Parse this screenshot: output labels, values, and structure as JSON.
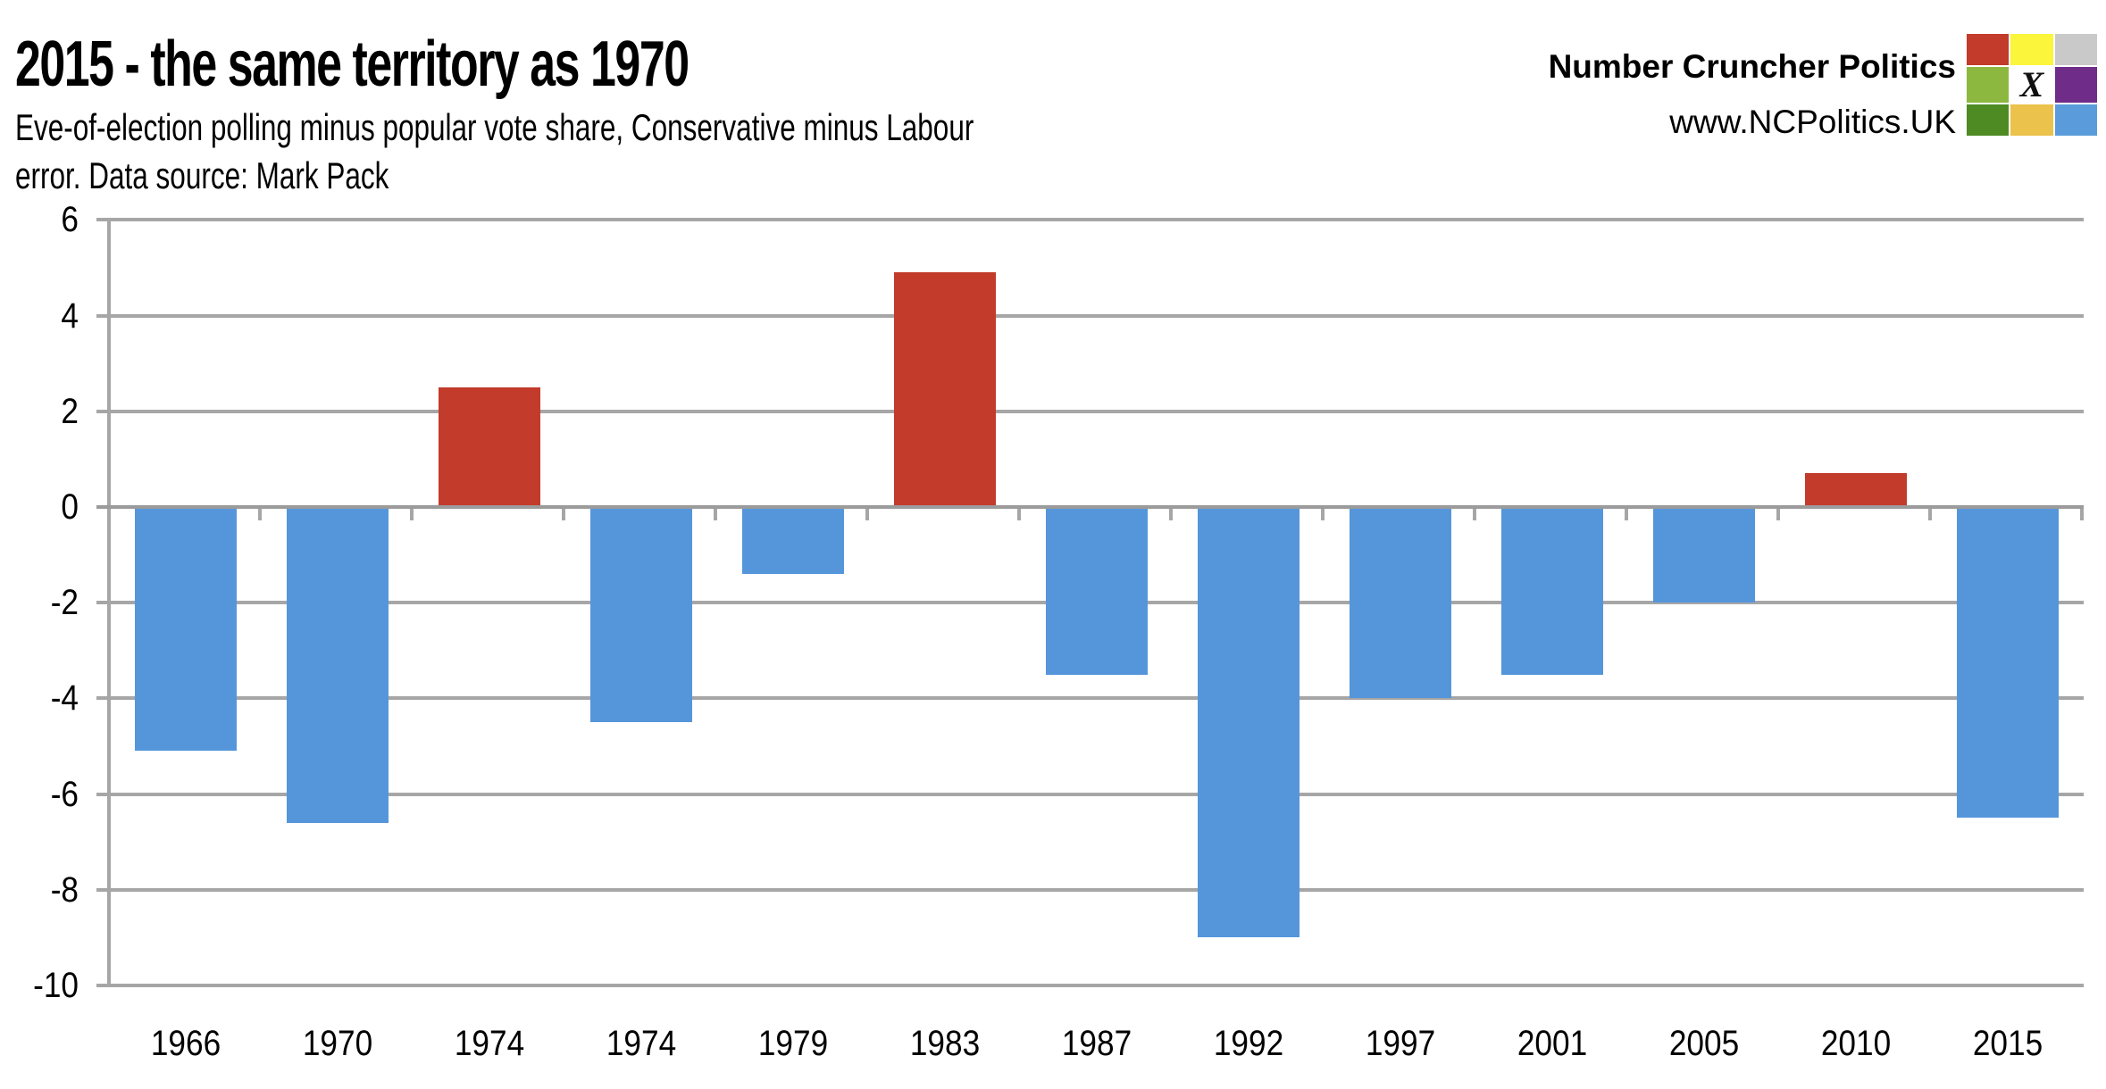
{
  "header": {
    "title": "2015 - the same territory as 1970",
    "subtitle_line1": "Eve-of-election polling minus popular vote share, Conservative minus Labour",
    "subtitle_line2": "error. Data source: Mark Pack"
  },
  "branding": {
    "name": "Number Cruncher Politics",
    "url": "www.NCPolitics.UK",
    "logo": {
      "x_mark": "X",
      "cells": [
        "#c23b2b",
        "#fbf53c",
        "#c9c9c9",
        "#8db840",
        "#ffffff",
        "#6f2d89",
        "#4e8c23",
        "#ebc24b",
        "#5a9cdb"
      ]
    }
  },
  "chart_data": {
    "type": "bar",
    "title": "2015 - the same territory as 1970",
    "subtitle": "Eve-of-election polling minus popular vote share, Conservative minus Labour error. Data source: Mark Pack",
    "categories": [
      "1966",
      "1970",
      "1974",
      "1974",
      "1979",
      "1983",
      "1987",
      "1992",
      "1997",
      "2001",
      "2005",
      "2010",
      "2015"
    ],
    "values": [
      -5.1,
      -6.6,
      2.5,
      -4.5,
      -1.4,
      4.9,
      -3.5,
      -9.0,
      -4.0,
      -3.5,
      -2.0,
      0.7,
      -6.5
    ],
    "bar_colors": {
      "positive": "#c23b2b",
      "negative": "#5596db"
    },
    "yticks": [
      6,
      4,
      2,
      0,
      -2,
      -4,
      -6,
      -8,
      -10
    ],
    "ylim": [
      -10,
      6
    ],
    "xlabel": "",
    "ylabel": "",
    "grid": true,
    "gridline_color": "#a6a6a6",
    "legend": "none"
  }
}
